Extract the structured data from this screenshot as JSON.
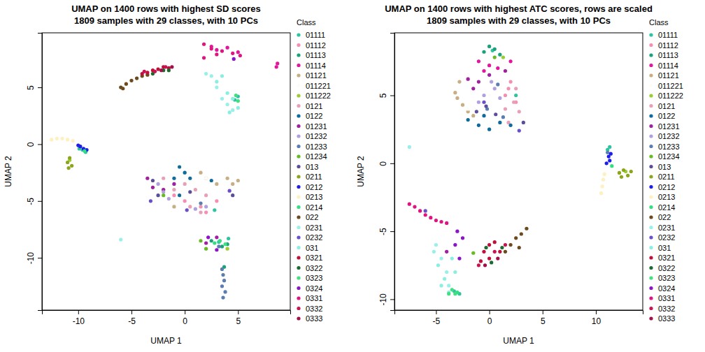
{
  "chart_data": [
    {
      "type": "scatter",
      "title": "UMAP on 1400 rows with highest SD scores",
      "subtitle": "1809 samples with 29 classes, with 10 PCs",
      "x_label": "UMAP 1",
      "y_label": "UMAP 2",
      "legend_title": "Class",
      "legend": "right",
      "marker": "circle",
      "xlim": [
        -13.4,
        9.9
      ],
      "ylim": [
        -14.6,
        9.8
      ],
      "xticks": [
        -10,
        -5,
        0,
        5
      ],
      "yticks": [
        -10,
        -5,
        0,
        5
      ],
      "series": [
        {
          "name": "01111",
          "color": "#2ec4a0",
          "x": [
            -9.6,
            -9.3,
            -9.9,
            3.2,
            4.1,
            5.0,
            4.7,
            2.8
          ],
          "values": [
            -0.5,
            -0.7,
            -0.4,
            -8.6,
            -8.3,
            4.2,
            3.9,
            -5.8
          ]
        },
        {
          "name": "01112",
          "color": "#f48fb1",
          "x": [
            -2,
            0,
            1.5,
            2,
            -1,
            3
          ],
          "values": [
            -4,
            -5,
            -5.5,
            -6,
            -4.5,
            -5
          ]
        },
        {
          "name": "01113",
          "color": "#1aa37a",
          "x": [
            2.5,
            3.5,
            4,
            3.7
          ],
          "values": [
            -8.5,
            -9,
            -8.8,
            -10.8
          ]
        },
        {
          "name": "01114",
          "color": "#e0169b",
          "x": [
            3,
            4,
            5,
            2.5,
            8.7,
            8.6
          ],
          "values": [
            8.3,
            8.5,
            8.1,
            8.6,
            7.1,
            6.8
          ]
        },
        {
          "name": "01121",
          "color": "#c8ae84",
          "x": [
            2,
            3,
            4,
            4.5,
            5,
            1.5,
            -1
          ],
          "values": [
            -3,
            -3.5,
            -3,
            -3.5,
            -3.2,
            -2.5,
            -5.5
          ]
        },
        {
          "name": "011221",
          "color": "#fdfdf8",
          "x": [
            -11,
            2
          ],
          "values": [
            0.5,
            -3
          ]
        },
        {
          "name": "011222",
          "color": "#9acd32",
          "x": [
            -10.8,
            4
          ],
          "values": [
            -1.4,
            -9.2
          ]
        },
        {
          "name": "0121",
          "color": "#e8a0b8",
          "x": [
            -1,
            0,
            1,
            2,
            -2,
            0.5,
            1.5
          ],
          "values": [
            -4,
            -3.5,
            -4,
            -4.5,
            -3,
            -5.5,
            -6
          ]
        },
        {
          "name": "0122",
          "color": "#0e6b9c",
          "x": [
            -0.5,
            0,
            -1,
            0.5,
            2.5,
            -0.5
          ],
          "values": [
            -2,
            -2.5,
            -3,
            -3,
            -3.2,
            -4.5
          ]
        },
        {
          "name": "01231",
          "color": "#a020a0",
          "x": [
            -3.5,
            -3,
            -2,
            3,
            2,
            -1
          ],
          "values": [
            -3,
            -3.8,
            -4,
            -8.2,
            -8.7,
            -3.5
          ]
        },
        {
          "name": "01232",
          "color": "#b0a0e0",
          "x": [
            -2.5,
            -1.5,
            1,
            2,
            -2
          ],
          "values": [
            -3.5,
            -4.8,
            -5.7,
            -5.5,
            -4.2
          ]
        },
        {
          "name": "01233",
          "color": "#5b7db0",
          "x": [
            3.5,
            3.6,
            3.7,
            3.5,
            3.8,
            3.6,
            3.2,
            1.5
          ],
          "values": [
            -11,
            -11.5,
            -12,
            -12.5,
            -13,
            -13.5,
            -9,
            -5.2
          ]
        },
        {
          "name": "01234",
          "color": "#66bb22",
          "x": [
            1.5,
            2,
            -2
          ],
          "values": [
            -8.5,
            -9.2,
            -4.5
          ]
        },
        {
          "name": "013",
          "color": "#5a4e9a",
          "x": [
            -3,
            -2.5,
            0.5,
            4.5
          ],
          "values": [
            -3.2,
            -4.5,
            -4.2,
            -4.5
          ]
        },
        {
          "name": "0211",
          "color": "#8ca61a",
          "x": [
            -10.8,
            -11,
            -10.6,
            -10.9
          ],
          "values": [
            -1.2,
            -1.6,
            -1.9,
            -2.1
          ]
        },
        {
          "name": "0212",
          "color": "#1e1ee6",
          "x": [
            -9.8,
            -9.5,
            -9.2,
            -10
          ],
          "values": [
            -0.2,
            -0.4,
            -0.5,
            -0.1
          ]
        },
        {
          "name": "0213",
          "color": "#fff0c0",
          "x": [
            -12.5,
            -12,
            -11.5,
            -11,
            -10.5
          ],
          "values": [
            0.4,
            0.5,
            0.5,
            0.4,
            0.3
          ]
        },
        {
          "name": "0214",
          "color": "#30e080",
          "x": [
            -9.4,
            2.8,
            3.3
          ],
          "values": [
            -0.6,
            -8.7,
            -8.5
          ]
        },
        {
          "name": "022",
          "color": "#6b4a1e",
          "x": [
            -6,
            -5.5,
            -5,
            -4.5,
            -4,
            -5.8,
            -3.5
          ],
          "values": [
            5,
            5.3,
            5.6,
            5.8,
            6,
            4.9,
            6.1
          ]
        },
        {
          "name": "0231",
          "color": "#98f0e8",
          "x": [
            2.5,
            3,
            3.5,
            4,
            4.5,
            2,
            -6
          ],
          "values": [
            6,
            5,
            4,
            3.5,
            3,
            6.2,
            -8.4
          ]
        },
        {
          "name": "0232",
          "color": "#6a4fc8",
          "x": [
            -3.2,
            0.2,
            4.2
          ],
          "values": [
            -5,
            -5.8,
            -4.1
          ]
        },
        {
          "name": "031",
          "color": "#8aeee0",
          "x": [
            3,
            4,
            4.5,
            3.5,
            5,
            4.2
          ],
          "values": [
            5.5,
            4.5,
            4,
            6,
            3.2,
            2.8
          ]
        },
        {
          "name": "0321",
          "color": "#c0103a",
          "x": [
            -3.5,
            -3,
            -2.5,
            -2,
            -1.5,
            -4
          ],
          "values": [
            6.3,
            6.5,
            6.6,
            6.8,
            6.7,
            6.2
          ]
        },
        {
          "name": "0322",
          "color": "#1b6b30",
          "x": [
            -3,
            -2,
            -1.5
          ],
          "values": [
            6.2,
            6.5,
            6.5
          ]
        },
        {
          "name": "0323",
          "color": "#40e080",
          "x": [
            5,
            4.8,
            3.8
          ],
          "values": [
            3.8,
            4.3,
            -8.8
          ]
        },
        {
          "name": "0324",
          "color": "#8b14c8",
          "x": [
            2.2,
            3,
            4.6
          ],
          "values": [
            -8.2,
            -9.3,
            7.5
          ]
        },
        {
          "name": "0331",
          "color": "#e01480",
          "x": [
            1.8,
            2.5,
            3.5,
            4.5,
            5.2,
            1.8,
            3
          ],
          "values": [
            8.8,
            8.4,
            8.2,
            8,
            7.8,
            7.6,
            7.9
          ]
        },
        {
          "name": "0332",
          "color": "#c81452",
          "x": [
            -2.8,
            -1.8,
            -3.8
          ],
          "values": [
            6.4,
            6.8,
            6.4
          ]
        },
        {
          "name": "0333",
          "color": "#a0104a",
          "x": [
            -2.2,
            -1.2
          ],
          "values": [
            6.5,
            6.8
          ]
        }
      ]
    },
    {
      "type": "scatter",
      "title": "UMAP on 1400 rows with highest ATC scores, rows are scaled",
      "subtitle": "1809 samples with 29 classes, with 10 PCs",
      "x_label": "UMAP 1",
      "y_label": "UMAP 2",
      "legend_title": "Class",
      "legend": "right",
      "marker": "circle",
      "xlim": [
        -8.9,
        14.4
      ],
      "ylim": [
        -10.8,
        9.6
      ],
      "xticks": [
        -5,
        0,
        5,
        10
      ],
      "yticks": [
        -10,
        -5,
        0,
        5
      ],
      "series": [
        {
          "name": "01111",
          "color": "#2ec4a0",
          "x": [
            11.3,
            11.1,
            0.3,
            -3.3,
            2.5,
            -2.8
          ],
          "values": [
            1.2,
            1,
            8.3,
            -9.4,
            5,
            -9.6
          ]
        },
        {
          "name": "01112",
          "color": "#f48fb1",
          "x": [
            1.5,
            2,
            2.5,
            1.8
          ],
          "values": [
            5,
            6,
            4.5,
            5.5
          ]
        },
        {
          "name": "01113",
          "color": "#1aa37a",
          "x": [
            0,
            0.5,
            -0.5,
            1
          ],
          "values": [
            8.6,
            8.4,
            8.2,
            8
          ]
        },
        {
          "name": "01114",
          "color": "#e0169b",
          "x": [
            -1,
            0,
            0.8,
            -0.5,
            2
          ],
          "values": [
            7.5,
            7.2,
            7,
            6.8,
            7.5
          ]
        },
        {
          "name": "01121",
          "color": "#c8ae84",
          "x": [
            -3,
            -2.5,
            -2,
            -3.2,
            -1.5,
            -2.8
          ],
          "values": [
            4.8,
            4.3,
            3.8,
            5.2,
            3.5,
            6
          ]
        },
        {
          "name": "011221",
          "color": "#fdfdf8",
          "x": [
            -2,
            0
          ],
          "values": [
            4,
            5
          ]
        },
        {
          "name": "011222",
          "color": "#9acd32",
          "x": [
            1.3,
            12.8
          ],
          "values": [
            7.8,
            -0.6
          ]
        },
        {
          "name": "0121",
          "color": "#e8a0b8",
          "x": [
            1.5,
            2.3,
            2.8,
            1.8,
            2.5
          ],
          "values": [
            4,
            4.5,
            3.8,
            3,
            5.5
          ]
        },
        {
          "name": "0122",
          "color": "#0e6b9c",
          "x": [
            -1,
            0,
            1,
            -0.5,
            2,
            -2
          ],
          "values": [
            2.8,
            2.5,
            3,
            3.5,
            2.8,
            3.2
          ]
        },
        {
          "name": "01231",
          "color": "#a020a0",
          "x": [
            -1.5,
            -1,
            0,
            -2,
            1.5,
            -4
          ],
          "values": [
            5.5,
            6,
            6.5,
            6.2,
            6.8,
            -6.5
          ]
        },
        {
          "name": "01232",
          "color": "#b0a0e0",
          "x": [
            -0.5,
            0.5,
            -1,
            0.2,
            1
          ],
          "values": [
            5,
            5.5,
            4.5,
            6,
            4.8
          ]
        },
        {
          "name": "01233",
          "color": "#5b7db0",
          "x": [
            11.1,
            0.8,
            -0.2,
            1.3
          ],
          "values": [
            0.8,
            5.8,
            4,
            3.4
          ]
        },
        {
          "name": "01234",
          "color": "#66bb22",
          "x": [
            -1.5,
            0.5
          ],
          "values": [
            -6.6,
            7.8
          ]
        },
        {
          "name": "013",
          "color": "#5a4e9a",
          "x": [
            -1.2,
            0.6,
            3.2,
            -0.3
          ],
          "values": [
            3.8,
            3.6,
            3,
            4.2
          ]
        },
        {
          "name": "0211",
          "color": "#8ca61a",
          "x": [
            12.2,
            12.6,
            13,
            12.4,
            13.3
          ],
          "values": [
            -0.7,
            -0.5,
            -0.9,
            -1,
            -0.6
          ]
        },
        {
          "name": "0212",
          "color": "#1e1ee6",
          "x": [
            11.2,
            11.3,
            11,
            11.4
          ],
          "values": [
            0.5,
            0.2,
            0,
            0.7
          ]
        },
        {
          "name": "0213",
          "color": "#fff0c0",
          "x": [
            10.7,
            10.6,
            10.5,
            10.8
          ],
          "values": [
            -1.2,
            -1.7,
            -2.2,
            -0.8
          ]
        },
        {
          "name": "0214",
          "color": "#30e080",
          "x": [
            11.5,
            -3
          ],
          "values": [
            -0.2,
            -9.5
          ]
        },
        {
          "name": "022",
          "color": "#6b4a1e",
          "x": [
            1.5,
            2,
            2.5,
            3,
            3.5,
            2.8
          ],
          "values": [
            -6.5,
            -6,
            -5.5,
            -5.2,
            -4.8,
            -6.2
          ]
        },
        {
          "name": "0231",
          "color": "#98f0e8",
          "x": [
            -5,
            -4.5,
            -4,
            -3.8,
            -7.5,
            -5.2
          ],
          "values": [
            -6,
            -7,
            -8,
            -9,
            1.2,
            -6.5
          ]
        },
        {
          "name": "0232",
          "color": "#6a4fc8",
          "x": [
            -6,
            -0.5,
            2.8
          ],
          "values": [
            -3.5,
            4.5,
            2.4
          ]
        },
        {
          "name": "031",
          "color": "#8aeee0",
          "x": [
            -4.8,
            -4.2,
            -3.5,
            -3.8,
            -4.5,
            -3.2
          ],
          "values": [
            -7.5,
            -8.5,
            -7,
            -9.5,
            -9,
            -8
          ]
        },
        {
          "name": "0321",
          "color": "#c0103a",
          "x": [
            -0.5,
            0,
            0.5,
            1,
            0,
            -0.8
          ],
          "values": [
            -6.5,
            -6,
            -5.8,
            -6.5,
            -7,
            -7.2
          ]
        },
        {
          "name": "0322",
          "color": "#1b6b30",
          "x": [
            0.2,
            1.2,
            -0.3
          ],
          "values": [
            -7.3,
            -6.2,
            -6.2
          ]
        },
        {
          "name": "0323",
          "color": "#40e080",
          "x": [
            -3.5,
            -3.2,
            -3.8
          ],
          "values": [
            -9.3,
            -9.6,
            -9.6
          ]
        },
        {
          "name": "0324",
          "color": "#8b14c8",
          "x": [
            -3,
            -3.2,
            -2.8,
            -2.5
          ],
          "values": [
            -5,
            -6,
            -7,
            -5.5
          ]
        },
        {
          "name": "0331",
          "color": "#e01480",
          "x": [
            -7.5,
            -7,
            -6.5,
            -6,
            -5.5,
            -5,
            -4.5,
            -4
          ],
          "values": [
            -3,
            -3.2,
            -3.5,
            -3.8,
            -4,
            -4.2,
            -4.3,
            -4.4
          ]
        },
        {
          "name": "0332",
          "color": "#c81452",
          "x": [
            -1,
            0.5,
            1.5
          ],
          "values": [
            -7.5,
            -6.5,
            -6
          ]
        },
        {
          "name": "0333",
          "color": "#a0104a",
          "x": [
            0.8,
            -0.4
          ],
          "values": [
            -7,
            -7.5
          ]
        }
      ]
    }
  ]
}
